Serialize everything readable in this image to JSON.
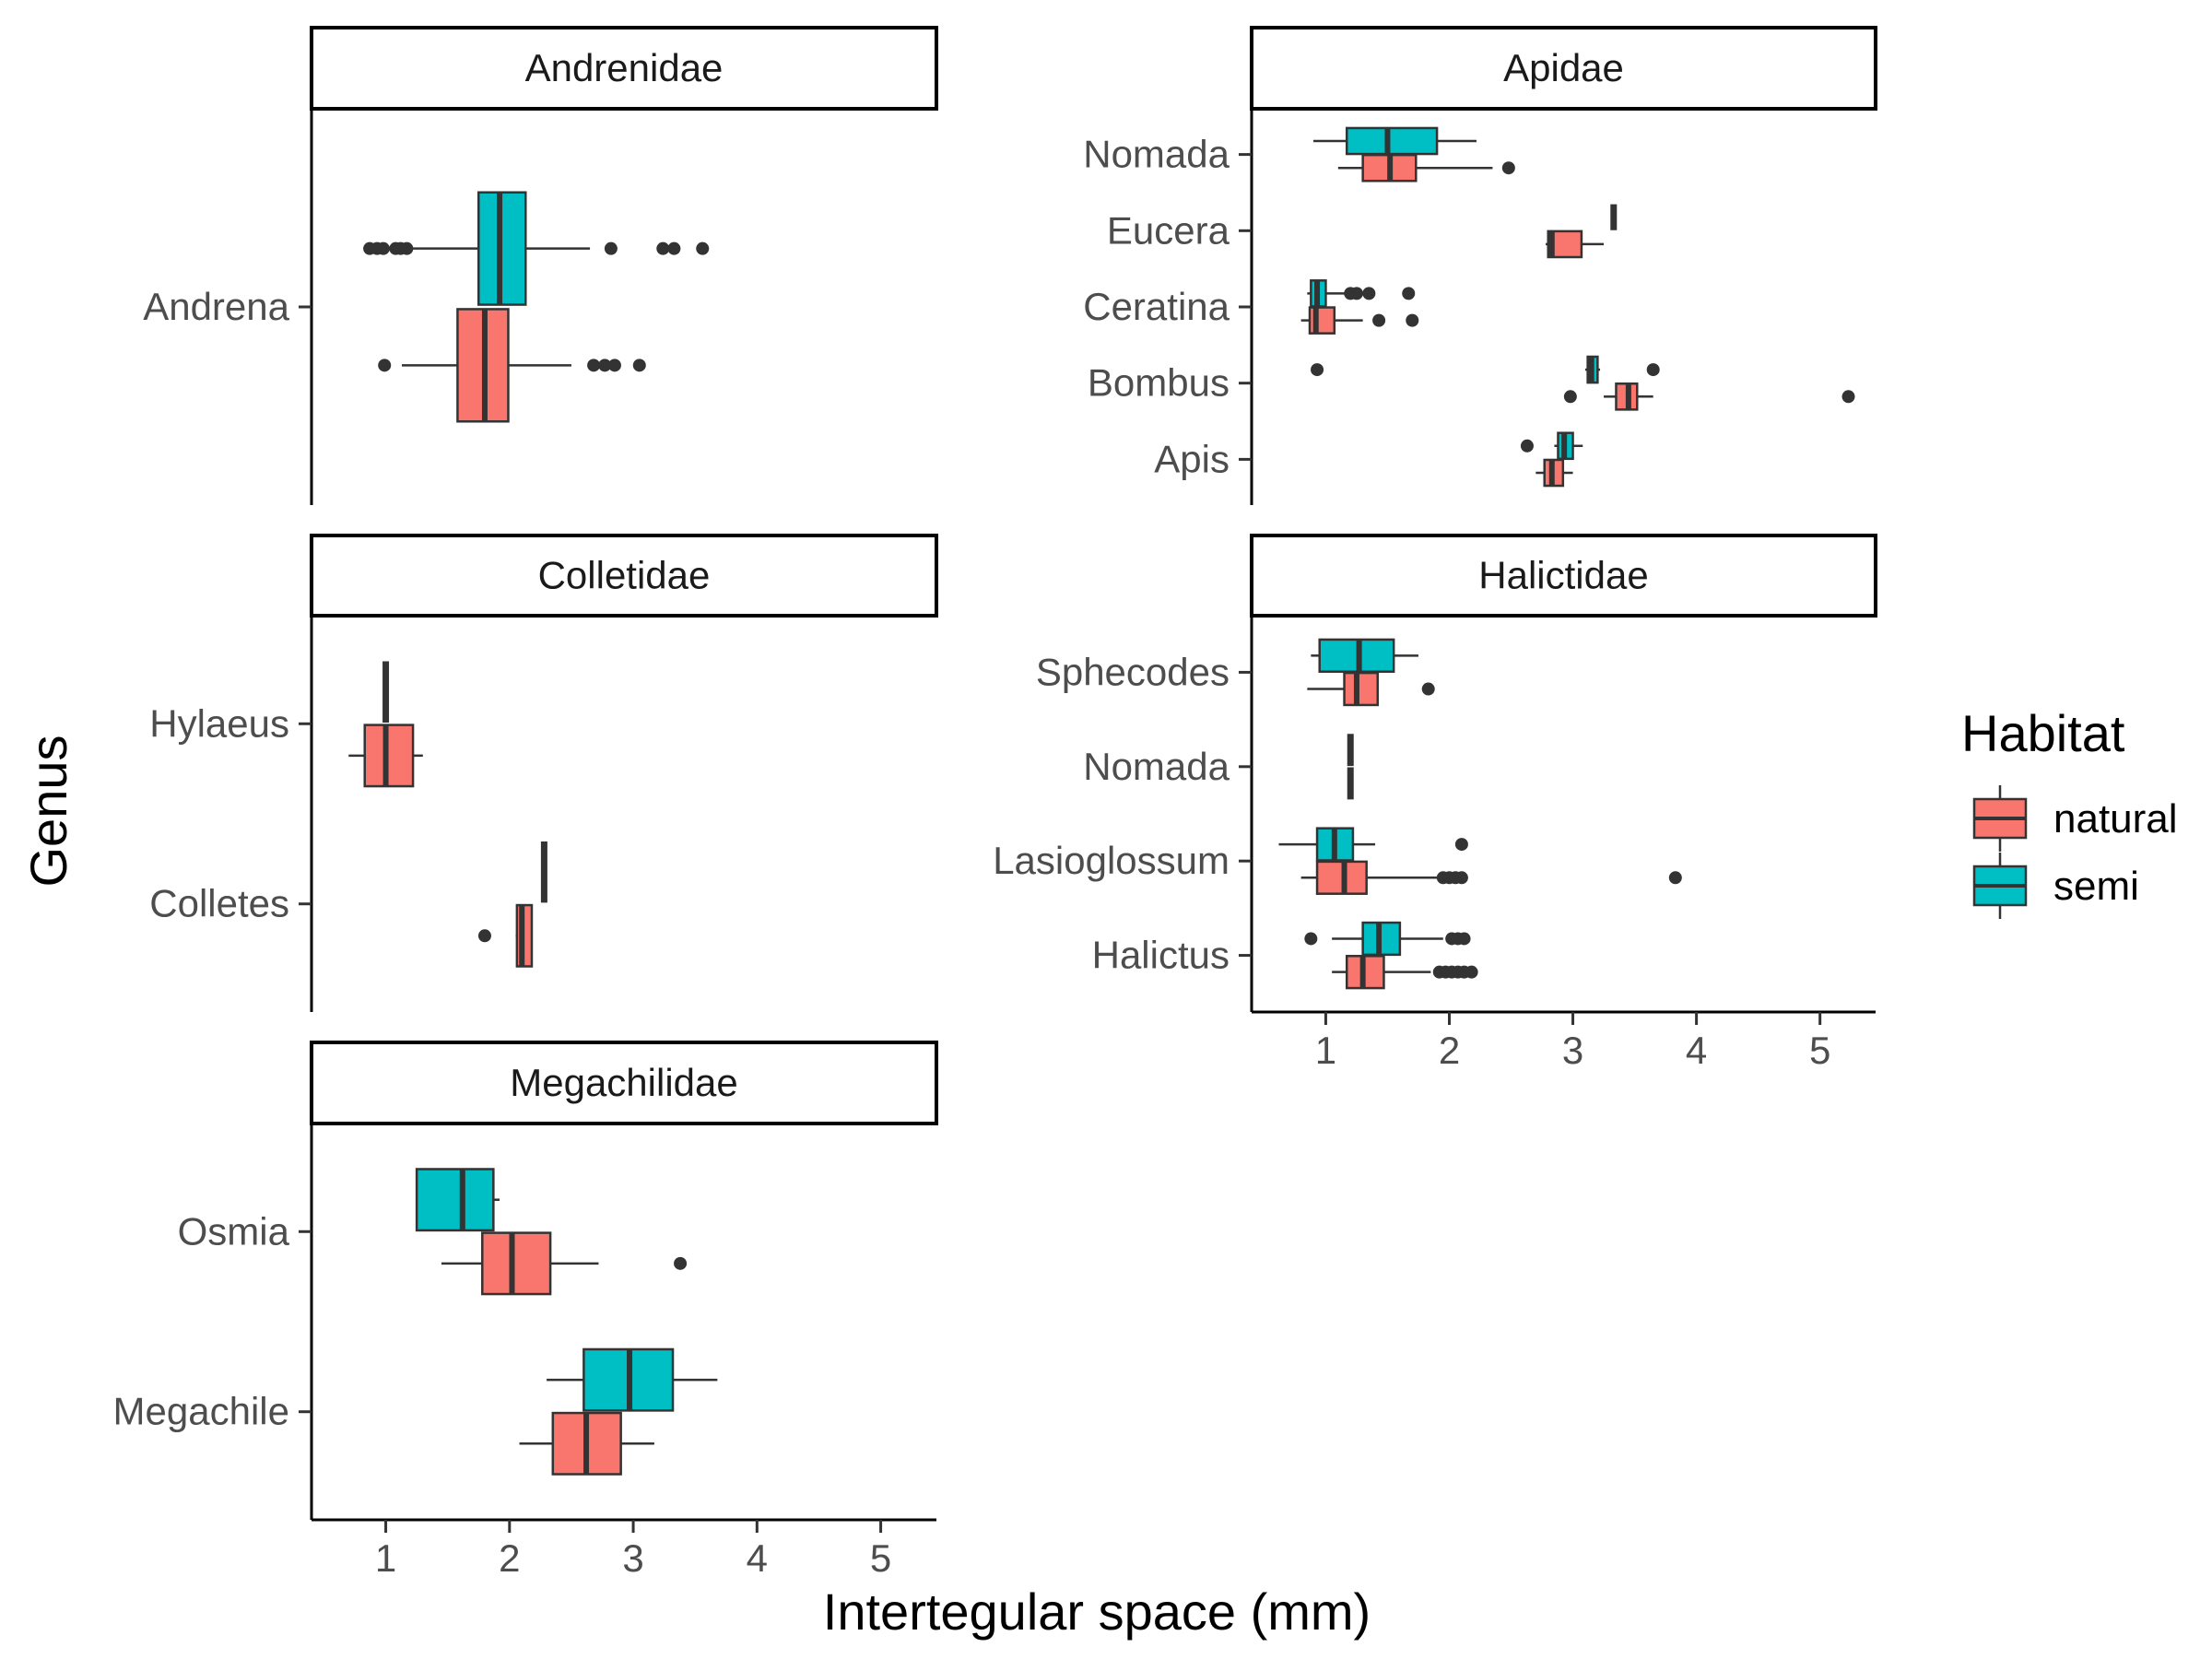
{
  "chart_data": {
    "type": "boxplot",
    "xlabel": "Intertegular space (mm)",
    "ylabel": "Genus",
    "xlim": [
      0.4,
      5.45
    ],
    "xticks": [
      "1",
      "2",
      "3",
      "4",
      "5"
    ],
    "colors": {
      "natural": "#F8766D",
      "semi": "#00BFC4"
    },
    "legend": {
      "title": "Habitat",
      "position": "right",
      "entries": [
        "natural",
        "semi"
      ]
    },
    "panels": [
      {
        "family": "Andrenidae",
        "genera": [
          {
            "genus": "Andrena",
            "boxes": [
              {
                "habitat": "natural",
                "whisker_low": 1.13,
                "q1": 1.58,
                "median": 1.8,
                "q3": 1.99,
                "whisker_high": 2.5,
                "outliers": [
                  0.99,
                  2.68,
                  2.77,
                  2.85,
                  3.05
                ]
              },
              {
                "habitat": "semi",
                "whisker_low": 1.22,
                "q1": 1.75,
                "median": 1.92,
                "q3": 2.13,
                "whisker_high": 2.65,
                "outliers": [
                  0.87,
                  0.93,
                  0.98,
                  1.08,
                  1.12,
                  1.17,
                  2.82,
                  3.24,
                  3.33,
                  3.56
                ]
              }
            ]
          }
        ]
      },
      {
        "family": "Apidae",
        "genera": [
          {
            "genus": "Nomada",
            "boxes": [
              {
                "habitat": "natural",
                "whisker_low": 1.1,
                "q1": 1.3,
                "median": 1.52,
                "q3": 1.73,
                "whisker_high": 2.35,
                "outliers": [
                  2.48
                ]
              },
              {
                "habitat": "semi",
                "whisker_low": 0.9,
                "q1": 1.17,
                "median": 1.5,
                "q3": 1.9,
                "whisker_high": 2.22,
                "outliers": []
              }
            ]
          },
          {
            "genus": "Eucera",
            "boxes": [
              {
                "habitat": "natural",
                "whisker_low": 2.78,
                "q1": 2.8,
                "median": 2.83,
                "q3": 3.07,
                "whisker_high": 3.25,
                "outliers": []
              },
              {
                "habitat": "semi",
                "whisker_low": 3.33,
                "q1": 3.33,
                "median": 3.33,
                "q3": 3.33,
                "whisker_high": 3.33,
                "outliers": []
              }
            ]
          },
          {
            "genus": "Ceratina",
            "boxes": [
              {
                "habitat": "natural",
                "whisker_low": 0.8,
                "q1": 0.87,
                "median": 0.92,
                "q3": 1.07,
                "whisker_high": 1.3,
                "outliers": [
                  1.43,
                  1.7
                ]
              },
              {
                "habitat": "semi",
                "whisker_low": 0.85,
                "q1": 0.88,
                "median": 0.93,
                "q3": 1.0,
                "whisker_high": 1.15,
                "outliers": [
                  1.2,
                  1.25,
                  1.35,
                  1.67
                ]
              }
            ]
          },
          {
            "genus": "Bombus",
            "boxes": [
              {
                "habitat": "natural",
                "whisker_low": 3.25,
                "q1": 3.35,
                "median": 3.45,
                "q3": 3.52,
                "whisker_high": 3.65,
                "outliers": [
                  2.98,
                  5.23
                ]
              },
              {
                "habitat": "semi",
                "whisker_low": 3.1,
                "q1": 3.12,
                "median": 3.15,
                "q3": 3.2,
                "whisker_high": 3.22,
                "outliers": [
                  0.93,
                  3.65
                ]
              }
            ]
          },
          {
            "genus": "Apis",
            "boxes": [
              {
                "habitat": "natural",
                "whisker_low": 2.7,
                "q1": 2.77,
                "median": 2.83,
                "q3": 2.92,
                "whisker_high": 3.0,
                "outliers": []
              },
              {
                "habitat": "semi",
                "whisker_low": 2.85,
                "q1": 2.88,
                "median": 2.93,
                "q3": 3.0,
                "whisker_high": 3.08,
                "outliers": [
                  2.63
                ]
              }
            ]
          }
        ]
      },
      {
        "family": "Colletidae",
        "genera": [
          {
            "genus": "Hylaeus",
            "boxes": [
              {
                "habitat": "natural",
                "whisker_low": 0.7,
                "q1": 0.83,
                "median": 1.0,
                "q3": 1.22,
                "whisker_high": 1.3,
                "outliers": []
              },
              {
                "habitat": "semi",
                "whisker_low": 1.0,
                "q1": 1.0,
                "median": 1.0,
                "q3": 1.0,
                "whisker_high": 1.0,
                "outliers": []
              }
            ]
          },
          {
            "genus": "Colletes",
            "boxes": [
              {
                "habitat": "natural",
                "whisker_low": 2.05,
                "q1": 2.06,
                "median": 2.1,
                "q3": 2.18,
                "whisker_high": 2.18,
                "outliers": [
                  1.8
                ]
              },
              {
                "habitat": "semi",
                "whisker_low": 2.28,
                "q1": 2.28,
                "median": 2.28,
                "q3": 2.28,
                "whisker_high": 2.28,
                "outliers": []
              }
            ]
          }
        ]
      },
      {
        "family": "Halictidae",
        "genera": [
          {
            "genus": "Sphecodes",
            "boxes": [
              {
                "habitat": "natural",
                "whisker_low": 0.85,
                "q1": 1.15,
                "median": 1.25,
                "q3": 1.42,
                "whisker_high": 1.42,
                "outliers": [
                  1.83
                ]
              },
              {
                "habitat": "semi",
                "whisker_low": 0.88,
                "q1": 0.95,
                "median": 1.27,
                "q3": 1.55,
                "whisker_high": 1.75,
                "outliers": []
              }
            ]
          },
          {
            "genus": "Nomada",
            "boxes": [
              {
                "habitat": "natural",
                "whisker_low": 1.2,
                "q1": 1.2,
                "median": 1.2,
                "q3": 1.2,
                "whisker_high": 1.2,
                "outliers": []
              },
              {
                "habitat": "semi",
                "whisker_low": 1.2,
                "q1": 1.2,
                "median": 1.2,
                "q3": 1.2,
                "whisker_high": 1.2,
                "outliers": []
              }
            ]
          },
          {
            "genus": "Lasioglossum",
            "boxes": [
              {
                "habitat": "natural",
                "whisker_low": 0.8,
                "q1": 0.93,
                "median": 1.15,
                "q3": 1.33,
                "whisker_high": 1.9,
                "outliers": [
                  1.95,
                  2.0,
                  2.05,
                  2.1,
                  3.83
                ]
              },
              {
                "habitat": "semi",
                "whisker_low": 0.62,
                "q1": 0.93,
                "median": 1.07,
                "q3": 1.22,
                "whisker_high": 1.4,
                "outliers": [
                  2.1
                ]
              }
            ]
          },
          {
            "genus": "Halictus",
            "boxes": [
              {
                "habitat": "natural",
                "whisker_low": 1.05,
                "q1": 1.17,
                "median": 1.3,
                "q3": 1.47,
                "whisker_high": 1.85,
                "outliers": [
                  1.92,
                  1.97,
                  2.02,
                  2.07,
                  2.12,
                  2.18
                ]
              },
              {
                "habitat": "semi",
                "whisker_low": 1.05,
                "q1": 1.3,
                "median": 1.43,
                "q3": 1.6,
                "whisker_high": 1.95,
                "outliers": [
                  0.88,
                  2.02,
                  2.07,
                  2.12
                ]
              }
            ]
          }
        ]
      },
      {
        "family": "Megachilidae",
        "genera": [
          {
            "genus": "Osmia",
            "boxes": [
              {
                "habitat": "natural",
                "whisker_low": 1.45,
                "q1": 1.78,
                "median": 2.02,
                "q3": 2.33,
                "whisker_high": 2.72,
                "outliers": [
                  3.38
                ]
              },
              {
                "habitat": "semi",
                "whisker_low": 1.25,
                "q1": 1.25,
                "median": 1.62,
                "q3": 1.87,
                "whisker_high": 1.92,
                "outliers": []
              }
            ]
          },
          {
            "genus": "Megachile",
            "boxes": [
              {
                "habitat": "natural",
                "whisker_low": 2.08,
                "q1": 2.35,
                "median": 2.62,
                "q3": 2.9,
                "whisker_high": 3.17,
                "outliers": []
              },
              {
                "habitat": "semi",
                "whisker_low": 2.3,
                "q1": 2.6,
                "median": 2.97,
                "q3": 3.32,
                "whisker_high": 3.68,
                "outliers": []
              }
            ]
          }
        ]
      }
    ]
  }
}
